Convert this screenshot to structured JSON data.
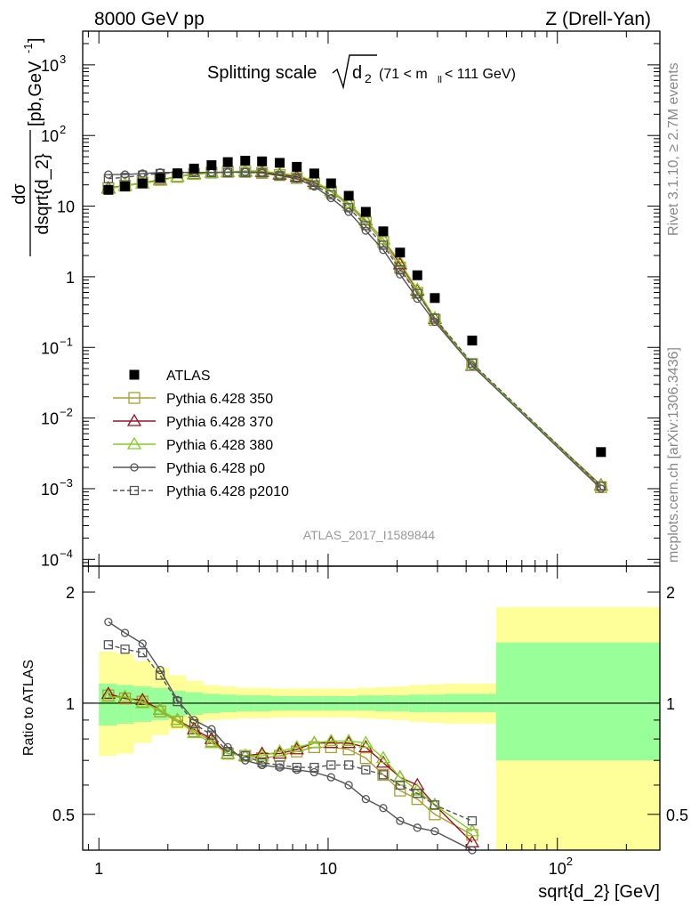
{
  "header": {
    "left": "8000 GeV pp",
    "right": "Z (Drell-Yan)"
  },
  "side_labels": {
    "rivet": "Rivet 3.1.10, ≥ 2.7M events",
    "mcplots": "mcplots.cern.ch [arXiv:1306.3436]"
  },
  "chart_data": [
    {
      "type": "scatter",
      "title_main": "Splitting scale",
      "title_sqrt": "d",
      "title_sub": "2",
      "title_range": "(71 < m",
      "title_range_sub": "ll",
      "title_range_end": " < 111 GeV)",
      "ylabel_num": "dσ",
      "ylabel_den": "dsqrt{d_2}",
      "ylabel_unit": "[pb,GeV",
      "ylabel_unit_sup": "-1",
      "ylabel_unit_end": "]",
      "yscale": "log",
      "ylim": [
        8e-05,
        3000
      ],
      "xscale": "log",
      "xlim": [
        0.85,
        280
      ],
      "yticks": [
        {
          "base": "10",
          "exp": "3",
          "v": 1000
        },
        {
          "base": "10",
          "exp": "2",
          "v": 100
        },
        {
          "base": "10",
          "exp": "",
          "v": 10
        },
        {
          "base": "1",
          "exp": "",
          "v": 1
        },
        {
          "base": "10",
          "exp": "−1",
          "v": 0.1
        },
        {
          "base": "10",
          "exp": "−2",
          "v": 0.01
        },
        {
          "base": "10",
          "exp": "−3",
          "v": 0.001
        },
        {
          "base": "10",
          "exp": "−4",
          "v": 0.0001
        }
      ],
      "watermark": "ATLAS_2017_I1589844",
      "legend_position": "lower-left",
      "x": [
        1.1,
        1.3,
        1.55,
        1.85,
        2.2,
        2.6,
        3.1,
        3.65,
        4.35,
        5.15,
        6.15,
        7.3,
        8.7,
        10.3,
        12.3,
        14.6,
        17.4,
        20.6,
        24.5,
        29.2,
        42.5,
        155
      ],
      "series": [
        {
          "name": "ATLAS",
          "marker": "filled-square",
          "color": "#000000",
          "values": [
            17,
            19,
            21,
            25,
            29,
            34,
            38,
            42,
            44,
            43,
            41,
            36,
            29,
            21,
            14,
            8.3,
            4.4,
            2.2,
            1.05,
            0.5,
            0.125,
            0.0033
          ]
        },
        {
          "name": "Pythia 6.428 350",
          "marker": "open-square",
          "color": "#a8a030",
          "values": [
            18,
            19.5,
            21.5,
            23.5,
            26,
            28.5,
            29.8,
            30.5,
            30.5,
            29.5,
            27.5,
            25,
            21,
            16,
            10.3,
            5.9,
            3.1,
            1.35,
            0.59,
            0.245,
            0.058,
            0.00105
          ]
        },
        {
          "name": "Pythia 6.428 370",
          "marker": "open-triangle",
          "color": "#a01020",
          "values": [
            18,
            19.5,
            21,
            23.5,
            26,
            28.5,
            29.8,
            30.5,
            31,
            30.5,
            28,
            26,
            22,
            16.5,
            11,
            6.3,
            3.4,
            1.5,
            0.64,
            0.255,
            0.055,
            0.00112
          ]
        },
        {
          "name": "Pythia 6.428 380",
          "marker": "open-triangle",
          "color": "#80d020",
          "values": [
            17.5,
            19.5,
            21,
            23,
            26,
            28,
            29.5,
            30.5,
            31.5,
            31.5,
            29,
            27.5,
            22.5,
            16.5,
            11,
            6.4,
            3.4,
            1.6,
            0.66,
            0.26,
            0.056,
            0.0011
          ]
        },
        {
          "name": "Pythia 6.428 p0",
          "marker": "open-circle",
          "color": "#555555",
          "values": [
            28,
            28,
            29,
            30,
            30,
            30,
            30,
            30,
            30.5,
            29.5,
            27,
            24.5,
            19,
            13,
            8.3,
            4.5,
            2.4,
            1.08,
            0.49,
            0.23,
            0.055,
            0.001
          ]
        },
        {
          "name": "Pythia 6.428 p2010",
          "marker": "open-square-dashed",
          "color": "#555555",
          "values": [
            24.5,
            25.5,
            27.5,
            29,
            29.5,
            29.8,
            30,
            30,
            30,
            29.5,
            27,
            25,
            20,
            14.5,
            9.5,
            5.3,
            2.8,
            1.25,
            0.58,
            0.26,
            0.06,
            0.00108
          ]
        }
      ]
    },
    {
      "type": "scatter",
      "ylabel": "Ratio to ATLAS",
      "yscale": "log",
      "ylim": [
        0.4,
        2.35
      ],
      "yticks": [
        {
          "label": "2",
          "v": 2
        },
        {
          "label": "1",
          "v": 1
        },
        {
          "label": "0.5",
          "v": 0.5
        }
      ],
      "xlabel": "sqrt{d_2} [GeV]",
      "xticks": [
        {
          "base": "1",
          "exp": "",
          "v": 1
        },
        {
          "base": "10",
          "exp": "",
          "v": 10
        },
        {
          "base": "10",
          "exp": "2",
          "v": 100
        }
      ],
      "bands": {
        "edges": [
          1,
          1.2,
          1.42,
          1.7,
          2.02,
          2.4,
          2.85,
          3.38,
          4,
          4.75,
          5.65,
          6.7,
          8,
          9.5,
          11.3,
          13.4,
          16,
          19,
          22.5,
          26.8,
          32,
          54,
          280
        ],
        "green_lo": [
          0.87,
          0.88,
          0.89,
          0.9,
          0.92,
          0.93,
          0.94,
          0.945,
          0.95,
          0.95,
          0.955,
          0.955,
          0.955,
          0.955,
          0.955,
          0.955,
          0.95,
          0.95,
          0.945,
          0.945,
          0.945,
          0.7
        ],
        "green_hi": [
          1.13,
          1.12,
          1.11,
          1.1,
          1.08,
          1.07,
          1.06,
          1.055,
          1.05,
          1.05,
          1.045,
          1.045,
          1.045,
          1.045,
          1.045,
          1.05,
          1.05,
          1.05,
          1.055,
          1.055,
          1.06,
          1.46
        ],
        "yellow_lo": [
          0.72,
          0.73,
          0.78,
          0.82,
          0.85,
          0.88,
          0.9,
          0.905,
          0.91,
          0.91,
          0.915,
          0.915,
          0.915,
          0.915,
          0.915,
          0.91,
          0.905,
          0.9,
          0.89,
          0.885,
          0.88,
          0.35
        ],
        "yellow_hi": [
          1.38,
          1.36,
          1.3,
          1.25,
          1.19,
          1.15,
          1.12,
          1.11,
          1.1,
          1.1,
          1.095,
          1.095,
          1.095,
          1.095,
          1.095,
          1.1,
          1.105,
          1.11,
          1.12,
          1.125,
          1.13,
          1.82
        ]
      },
      "x": [
        1.1,
        1.3,
        1.55,
        1.85,
        2.2,
        2.6,
        3.1,
        3.65,
        4.35,
        5.15,
        6.15,
        7.3,
        8.7,
        10.3,
        12.3,
        14.6,
        17.4,
        20.6,
        24.5,
        29.2,
        42.5
      ],
      "series": [
        {
          "name": "Pythia 6.428 350",
          "marker": "open-square",
          "color": "#a8a030",
          "values": [
            1.05,
            1.03,
            1.01,
            0.95,
            0.89,
            0.84,
            0.79,
            0.73,
            0.72,
            0.71,
            0.72,
            0.74,
            0.76,
            0.76,
            0.75,
            0.71,
            0.64,
            0.58,
            0.55,
            0.5,
            0.44
          ]
        },
        {
          "name": "Pythia 6.428 370",
          "marker": "open-triangle",
          "color": "#a01020",
          "values": [
            1.06,
            1.03,
            1.02,
            0.96,
            0.9,
            0.85,
            0.8,
            0.73,
            0.72,
            0.73,
            0.73,
            0.75,
            0.78,
            0.78,
            0.78,
            0.76,
            0.69,
            0.63,
            0.6,
            0.53,
            0.42
          ]
        },
        {
          "name": "Pythia 6.428 380",
          "marker": "open-triangle",
          "color": "#80d020",
          "values": [
            1.04,
            1.04,
            1.0,
            0.96,
            0.9,
            0.83,
            0.78,
            0.73,
            0.72,
            0.72,
            0.74,
            0.76,
            0.78,
            0.79,
            0.79,
            0.78,
            0.71,
            0.63,
            0.58,
            0.53,
            0.45
          ]
        },
        {
          "name": "Pythia 6.428 p0",
          "marker": "open-circle",
          "color": "#555555",
          "values": [
            1.66,
            1.55,
            1.45,
            1.23,
            1.02,
            0.9,
            0.85,
            0.76,
            0.7,
            0.68,
            0.67,
            0.66,
            0.65,
            0.63,
            0.6,
            0.55,
            0.52,
            0.48,
            0.46,
            0.45,
            0.38
          ]
        },
        {
          "name": "Pythia 6.428 p2010",
          "marker": "open-square-dashed",
          "color": "#555555",
          "values": [
            1.44,
            1.4,
            1.37,
            1.19,
            1.01,
            0.88,
            0.82,
            0.74,
            0.72,
            0.69,
            0.68,
            0.67,
            0.67,
            0.68,
            0.68,
            0.66,
            0.64,
            0.6,
            0.57,
            0.53,
            0.48
          ]
        }
      ]
    }
  ]
}
